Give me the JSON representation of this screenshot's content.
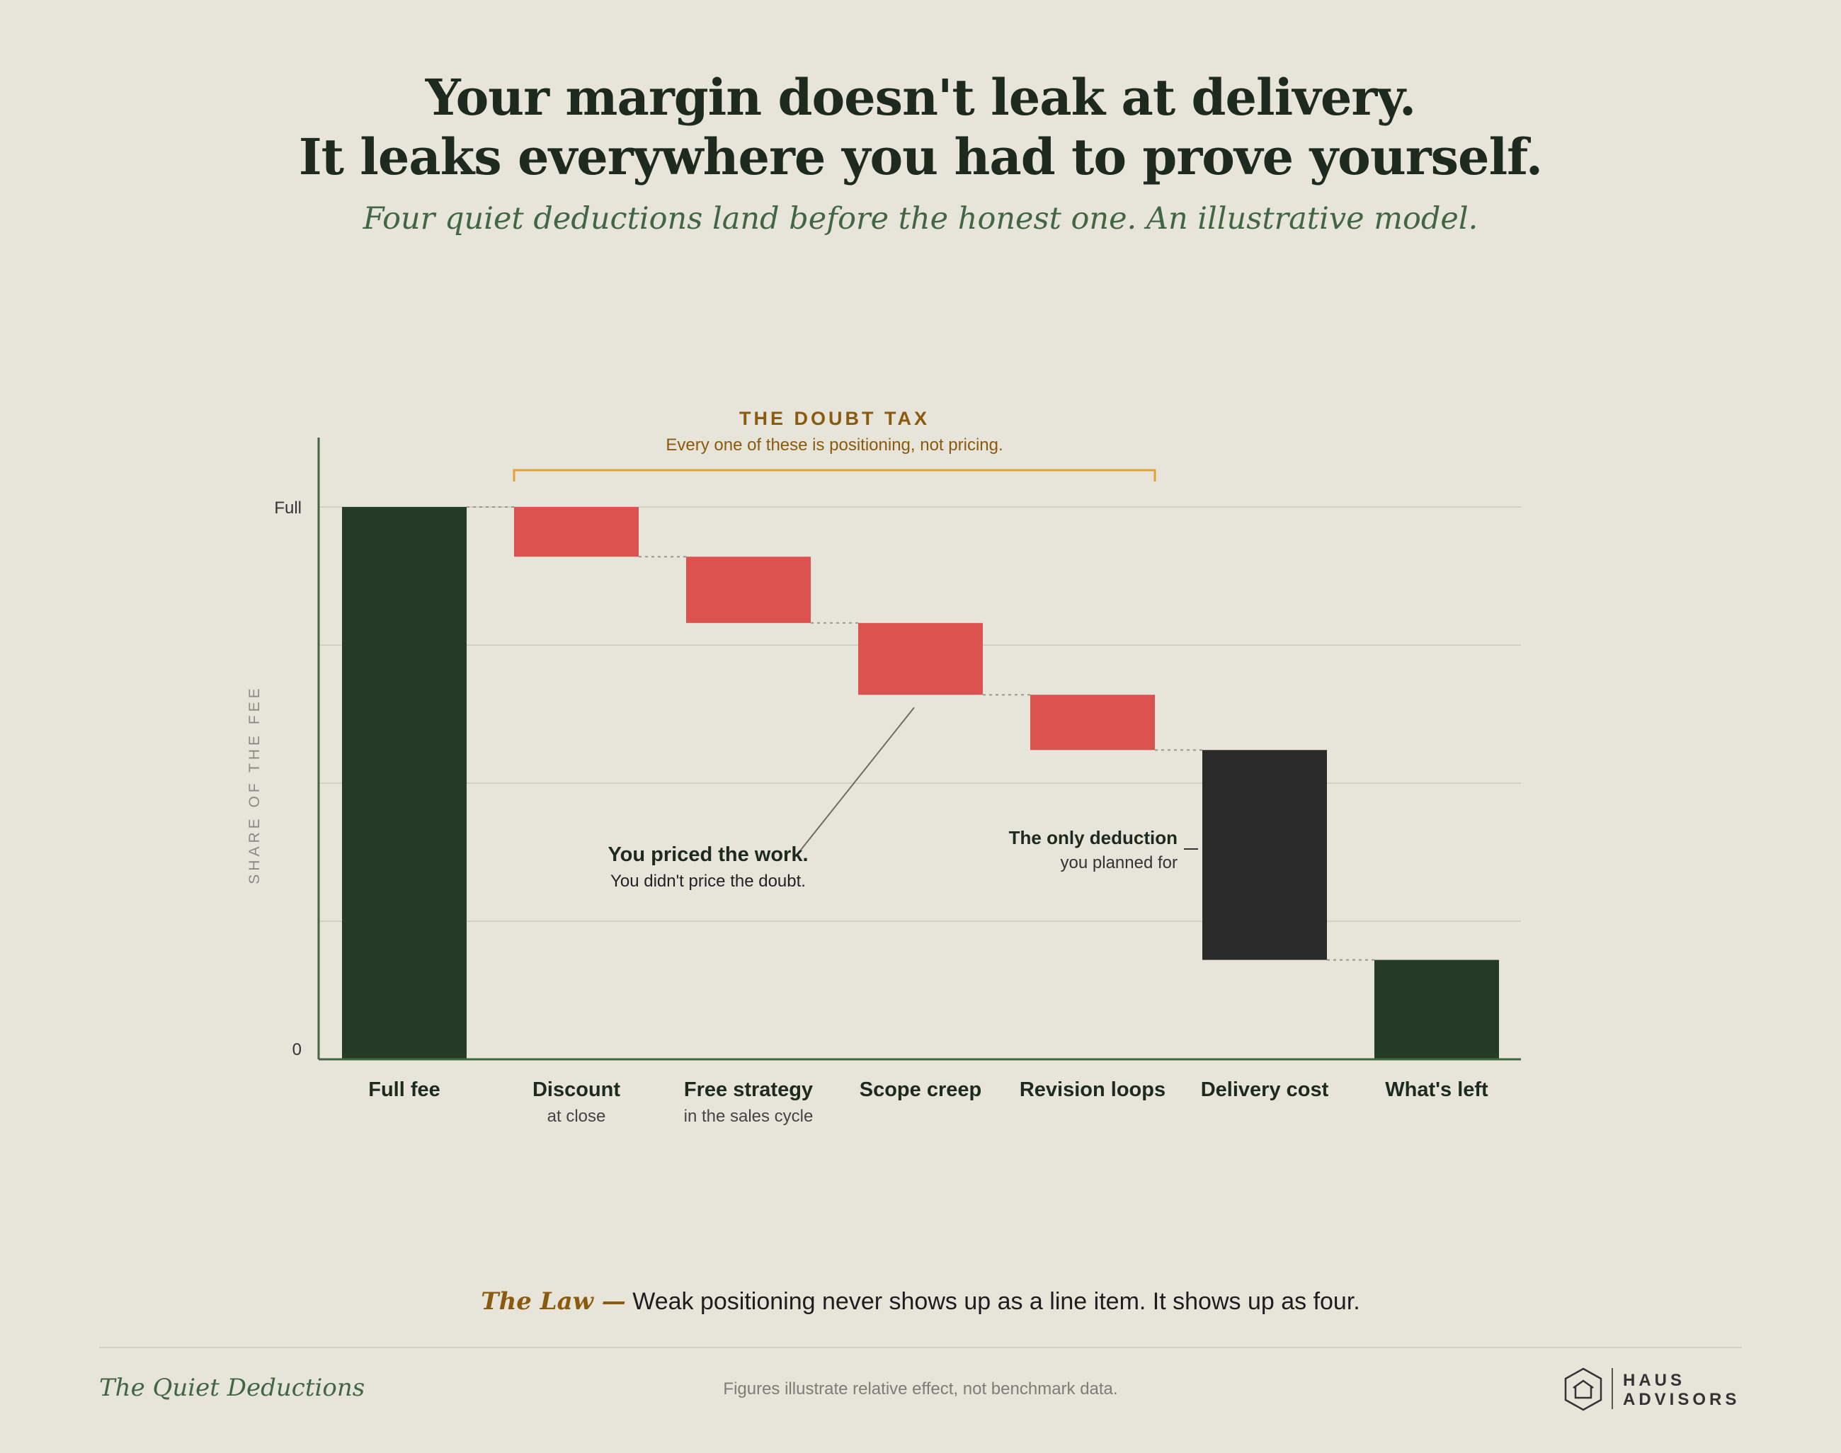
{
  "headline": {
    "line1": "Your margin doesn't leak at delivery.",
    "line2": "It leaks everywhere you had to prove yourself."
  },
  "subtitle": "Four quiet deductions land before the honest one. An illustrative model.",
  "colors": {
    "background": "#e7e4d9",
    "total_bar": "#263a28",
    "leak_bar": "#db524f",
    "delivery_bar": "#2b2b2b",
    "bracket": "#e4a236",
    "accent_text": "#8a5a0e",
    "axis": "#426545"
  },
  "chart_data": {
    "type": "waterfall",
    "ylabel": "SHARE OF THE FEE",
    "y_ticks": [
      "Full",
      "0"
    ],
    "ylim": [
      0,
      100
    ],
    "grid": true,
    "steps": [
      {
        "label": "Full fee",
        "sublabel": "",
        "kind": "total",
        "start": 100,
        "end": 0
      },
      {
        "label": "Discount",
        "sublabel": "at close",
        "kind": "leak",
        "start": 100,
        "end": 91
      },
      {
        "label": "Free strategy",
        "sublabel": "in the sales cycle",
        "kind": "leak",
        "start": 91,
        "end": 79
      },
      {
        "label": "Scope creep",
        "sublabel": "",
        "kind": "leak",
        "start": 79,
        "end": 66
      },
      {
        "label": "Revision loops",
        "sublabel": "",
        "kind": "leak",
        "start": 66,
        "end": 56
      },
      {
        "label": "Delivery cost",
        "sublabel": "",
        "kind": "delivery",
        "start": 56,
        "end": 18
      },
      {
        "label": "What's left",
        "sublabel": "",
        "kind": "total",
        "start": 18,
        "end": 0
      }
    ],
    "bracket": {
      "title": "THE DOUBT TAX",
      "subtitle": "Every one of these is positioning, not pricing."
    },
    "annotations": [
      {
        "title": "You priced the work.",
        "text": "You didn't price the doubt."
      },
      {
        "title": "The only deduction",
        "text": "you planned for"
      }
    ]
  },
  "law": {
    "label": "The Law —",
    "text": "Weak positioning never shows up as a line item. It shows up as four."
  },
  "footer": {
    "title": "The Quiet Deductions",
    "note": "Figures illustrate relative effect, not benchmark data.",
    "logo_line1": "HAUS",
    "logo_line2": "ADVISORS",
    "logo_icon": "house-hexagon-icon"
  }
}
